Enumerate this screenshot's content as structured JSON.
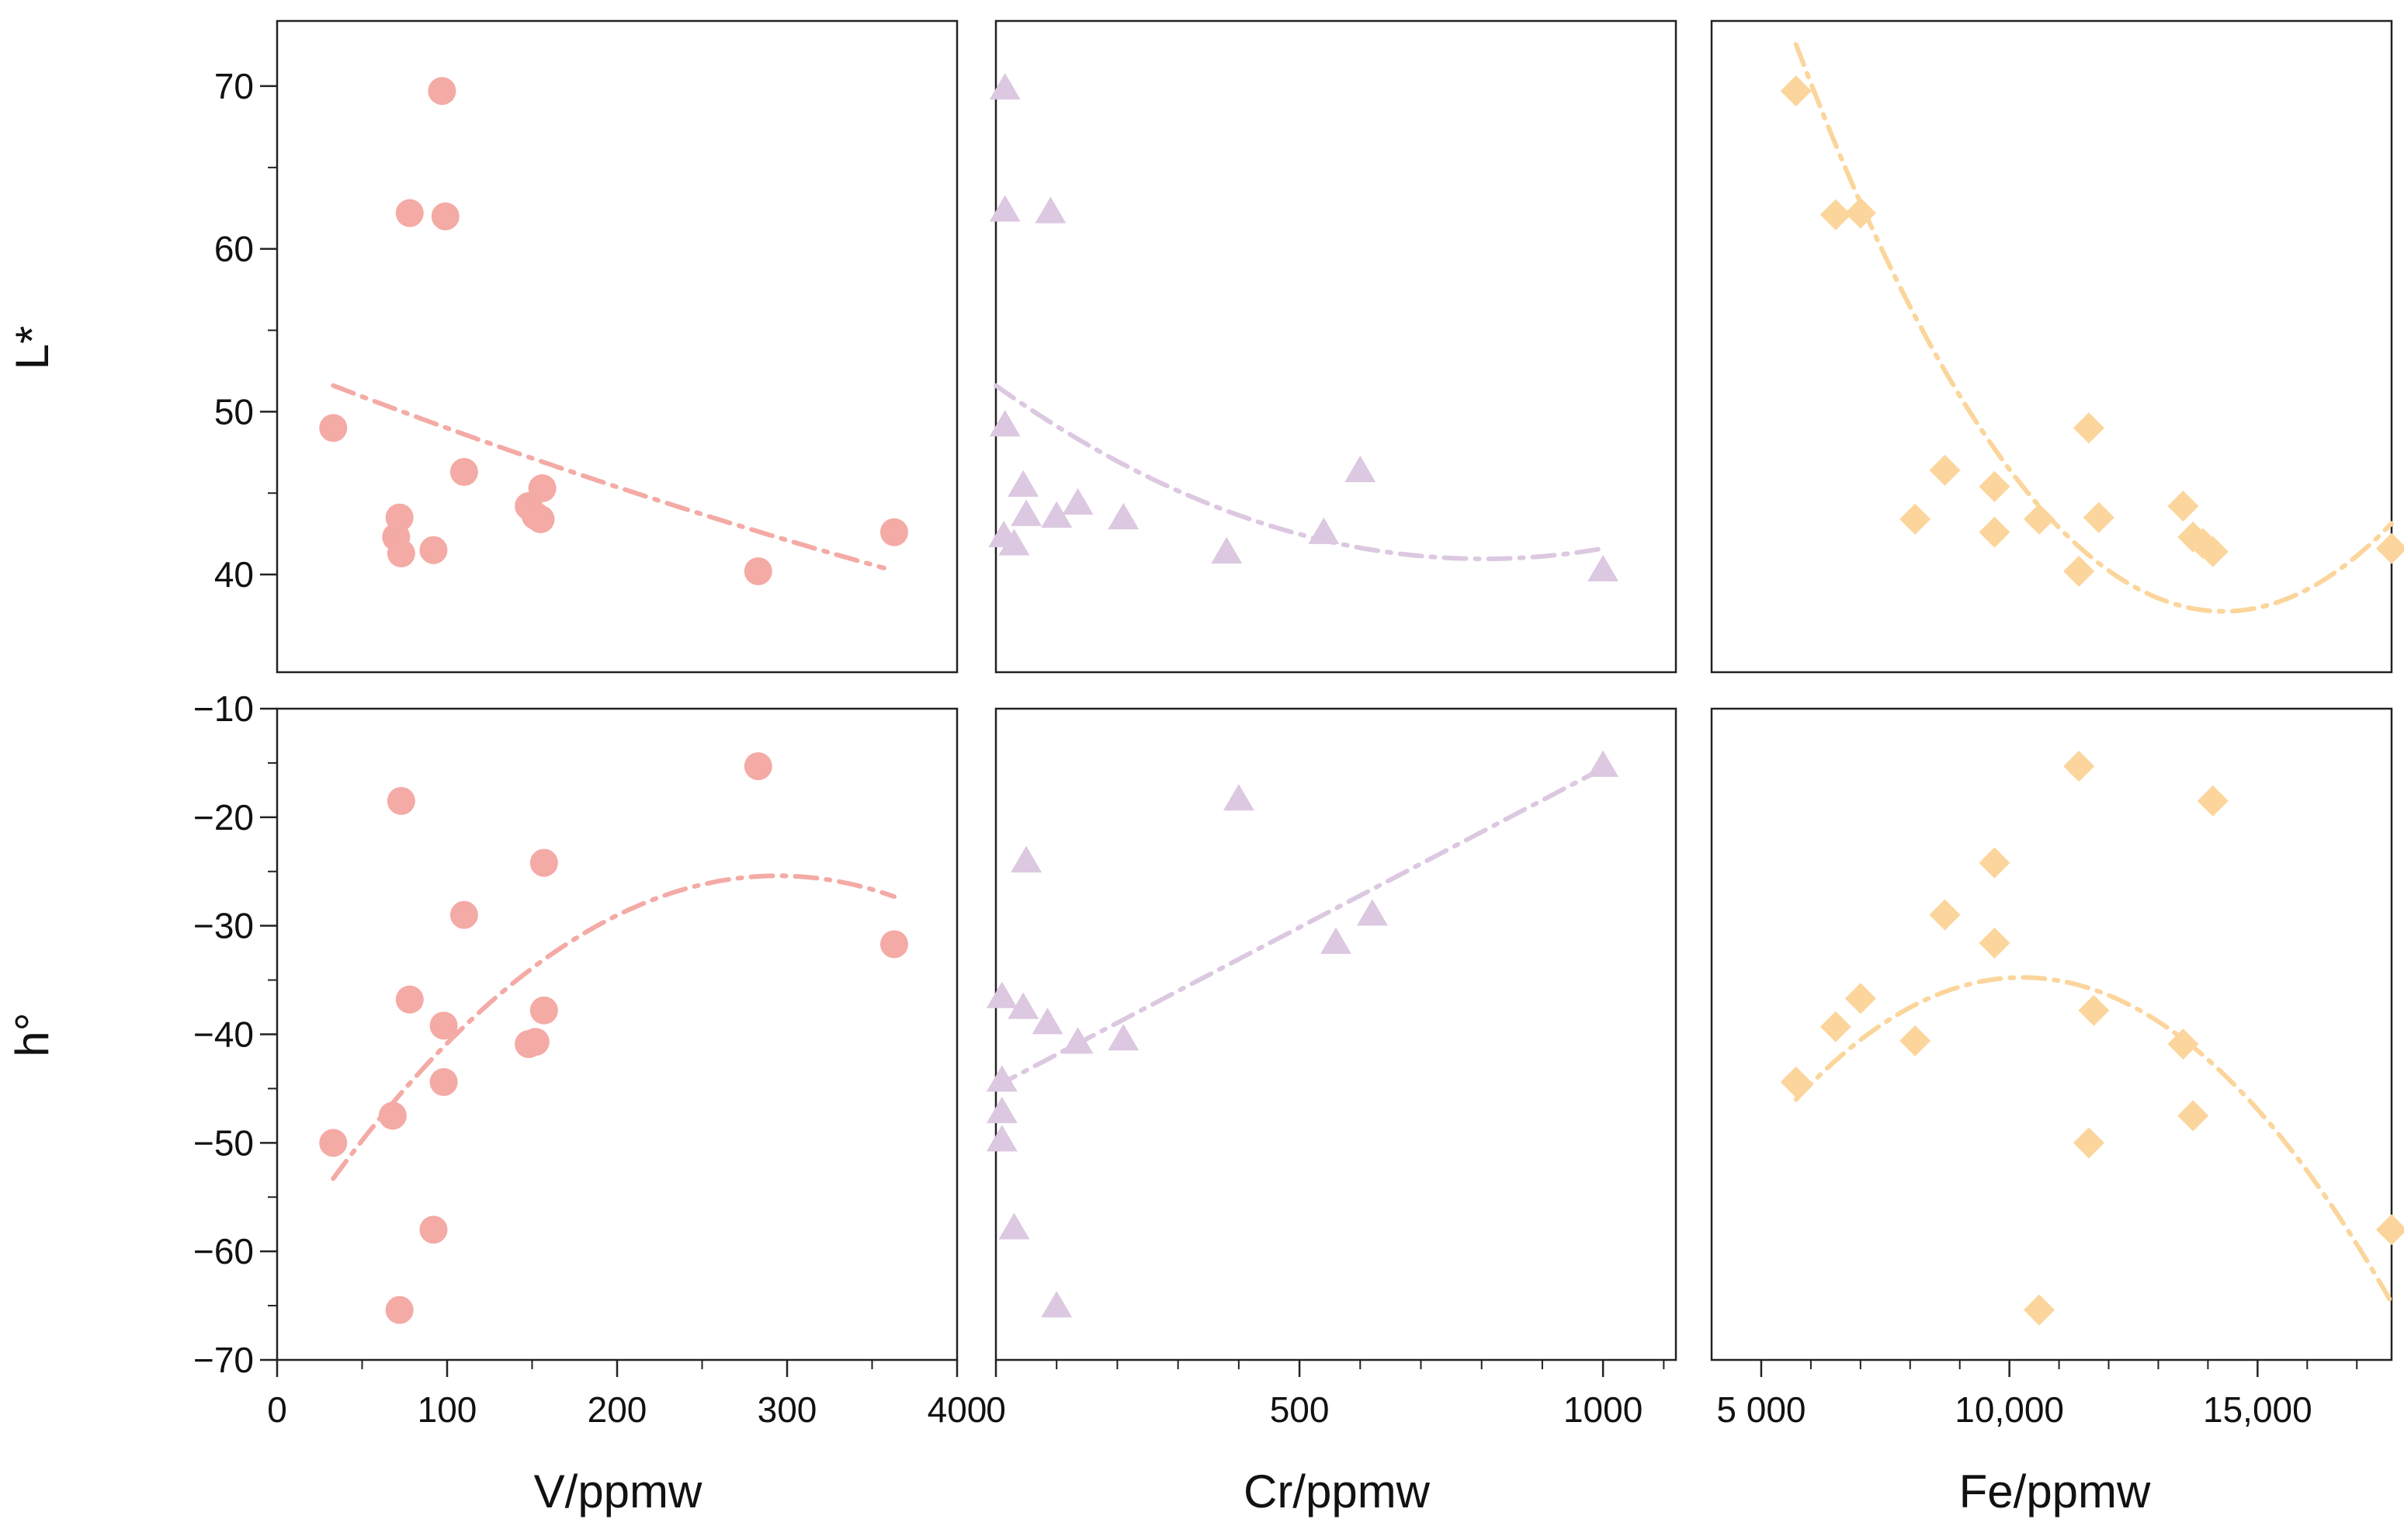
{
  "figure": {
    "row_labels": [
      "L*",
      "h°"
    ],
    "col_labels": [
      "V/ppmw",
      "Cr/ppmw",
      "Fe/ppmw"
    ]
  },
  "chart_data": [
    {
      "type": "scatter",
      "row": 0,
      "col": 0,
      "xlabel": "V/ppmw",
      "ylabel": "L*",
      "xlim": [
        0,
        400
      ],
      "ylim": [
        34,
        74
      ],
      "marker": "circle",
      "color": "#f4aaa5",
      "xticks": [],
      "yticks": [
        {
          "v": 40,
          "t": "40"
        },
        {
          "v": 50,
          "t": "50"
        },
        {
          "v": 60,
          "t": "60"
        },
        {
          "v": 70,
          "t": "70"
        }
      ],
      "yminor": [
        45,
        55,
        65
      ],
      "x": [
        33,
        97,
        78,
        99,
        70,
        72,
        73,
        92,
        110,
        148,
        152,
        155,
        156,
        283,
        363
      ],
      "y": [
        49.0,
        69.7,
        62.2,
        62.0,
        42.3,
        43.5,
        41.3,
        41.5,
        46.3,
        44.2,
        43.6,
        43.4,
        45.3,
        40.2,
        42.6
      ],
      "trend": {
        "type": "poly",
        "coef": [
          52.95,
          -0.0413,
          1.72e-05
        ],
        "range": [
          33,
          357
        ]
      }
    },
    {
      "type": "scatter",
      "row": 0,
      "col": 1,
      "xlabel": "Cr/ppmw",
      "ylabel": "L*",
      "xlim": [
        0,
        1120
      ],
      "ylim": [
        34,
        74
      ],
      "marker": "triangle",
      "color": "#dcc8e0",
      "xticks": [],
      "yticks": [],
      "yminor": [],
      "x": [
        15,
        15,
        15,
        90,
        13,
        30,
        45,
        50,
        100,
        135,
        210,
        380,
        540,
        600,
        1000
      ],
      "y": [
        69.9,
        62.4,
        49.2,
        62.3,
        42.4,
        41.9,
        45.5,
        43.7,
        43.6,
        44.4,
        43.5,
        41.4,
        42.6,
        46.4,
        40.3
      ],
      "trend": {
        "type": "poly",
        "coef": [
          51.6,
          -0.0265,
          1.65e-05
        ],
        "range": [
          0,
          1000
        ]
      }
    },
    {
      "type": "scatter",
      "row": 0,
      "col": 2,
      "xlabel": "Fe/ppmw",
      "ylabel": "L*",
      "xlim": [
        4000,
        17700
      ],
      "ylim": [
        34,
        74
      ],
      "marker": "diamond",
      "color": "#fbd59b",
      "xticks": [],
      "yticks": [],
      "yminor": [],
      "x": [
        5700,
        6500,
        7000,
        8100,
        8700,
        9700,
        9700,
        10600,
        11400,
        11600,
        11800,
        13500,
        13700,
        13900,
        14100,
        17700
      ],
      "y": [
        69.7,
        62.1,
        62.2,
        43.4,
        46.4,
        45.4,
        42.6,
        43.4,
        40.2,
        49.0,
        43.5,
        44.2,
        42.3,
        41.9,
        41.4,
        41.6
      ],
      "trend": {
        "type": "poly",
        "coef": [
          133.96,
          -0.01345,
          4.7e-07
        ],
        "range": [
          5700,
          17700
        ]
      }
    },
    {
      "type": "scatter",
      "row": 1,
      "col": 0,
      "xlabel": "V/ppmw",
      "ylabel": "h°",
      "xlim": [
        0,
        400
      ],
      "ylim": [
        -70,
        -10
      ],
      "marker": "circle",
      "color": "#f4aaa5",
      "xticks": [
        {
          "v": 0,
          "t": "0"
        },
        {
          "v": 100,
          "t": "100"
        },
        {
          "v": 200,
          "t": "200"
        },
        {
          "v": 300,
          "t": "300"
        },
        {
          "v": 400,
          "t": "400"
        }
      ],
      "xminor": [
        50,
        150,
        250,
        350
      ],
      "yticks": [
        {
          "v": -10,
          "t": "−10"
        },
        {
          "v": -20,
          "t": "−20"
        },
        {
          "v": -30,
          "t": "−30"
        },
        {
          "v": -40,
          "t": "−40"
        },
        {
          "v": -50,
          "t": "−50"
        },
        {
          "v": -60,
          "t": "−60"
        },
        {
          "v": -70,
          "t": "−70"
        }
      ],
      "yminor": [
        -15,
        -25,
        -35,
        -45,
        -55,
        -65
      ],
      "x": [
        33,
        68,
        73,
        78,
        98,
        98,
        110,
        92,
        72,
        148,
        152,
        157,
        157,
        283,
        363
      ],
      "y": [
        -50.0,
        -47.5,
        -18.5,
        -36.8,
        -39.2,
        -44.4,
        -29.0,
        -58.0,
        -65.4,
        -40.9,
        -40.7,
        -37.8,
        -24.2,
        -15.3,
        -31.7
      ],
      "trend": {
        "type": "poly",
        "coef": [
          -60.78,
          0.2403,
          -0.000408
        ],
        "range": [
          33,
          363
        ]
      }
    },
    {
      "type": "scatter",
      "row": 1,
      "col": 1,
      "xlabel": "Cr/ppmw",
      "ylabel": "h°",
      "xlim": [
        0,
        1120
      ],
      "ylim": [
        -70,
        -10
      ],
      "marker": "triangle",
      "color": "#dcc8e0",
      "xticks": [
        {
          "v": 0,
          "t": "0"
        },
        {
          "v": 500,
          "t": "500"
        },
        {
          "v": 1000,
          "t": "1000"
        }
      ],
      "xminor": [
        100,
        200,
        300,
        400,
        600,
        700,
        800,
        900,
        1100
      ],
      "yticks": [],
      "yminor": [],
      "x": [
        10,
        10,
        10,
        10,
        30,
        45,
        50,
        85,
        100,
        135,
        210,
        400,
        560,
        620,
        1000
      ],
      "y": [
        -36.5,
        -44.2,
        -47.1,
        -49.7,
        -57.8,
        -37.5,
        -24.0,
        -38.9,
        -65.0,
        -40.7,
        -40.4,
        -18.3,
        -31.5,
        -28.9,
        -15.2
      ],
      "trend": {
        "type": "poly",
        "coef": [
          -44.8,
          0.0293
        ],
        "range": [
          0,
          1000
        ]
      }
    },
    {
      "type": "scatter",
      "row": 1,
      "col": 2,
      "xlabel": "Fe/ppmw",
      "ylabel": "h°",
      "xlim": [
        4000,
        17700
      ],
      "ylim": [
        -70,
        -10
      ],
      "marker": "diamond",
      "color": "#fbd59b",
      "xticks": [
        {
          "v": 5000,
          "t": "5 000"
        },
        {
          "v": 10000,
          "t": "10,000"
        },
        {
          "v": 15000,
          "t": "15,000"
        }
      ],
      "xminor": [
        6000,
        7000,
        8000,
        9000,
        11000,
        12000,
        13000,
        14000,
        16000,
        17000
      ],
      "yticks": [],
      "yminor": [],
      "x": [
        5700,
        6500,
        7000,
        8100,
        8700,
        9700,
        9700,
        10600,
        11400,
        11600,
        11700,
        13500,
        13700,
        14100,
        17700
      ],
      "y": [
        -44.4,
        -39.3,
        -36.7,
        -40.6,
        -29.0,
        -31.6,
        -24.2,
        -65.4,
        -15.3,
        -50.0,
        -37.8,
        -40.9,
        -47.5,
        -18.5,
        -58.0
      ],
      "trend": {
        "type": "poly",
        "coef": [
          -91.7,
          0.0111,
          -5.41e-07
        ],
        "range": [
          5700,
          17700
        ]
      }
    }
  ]
}
